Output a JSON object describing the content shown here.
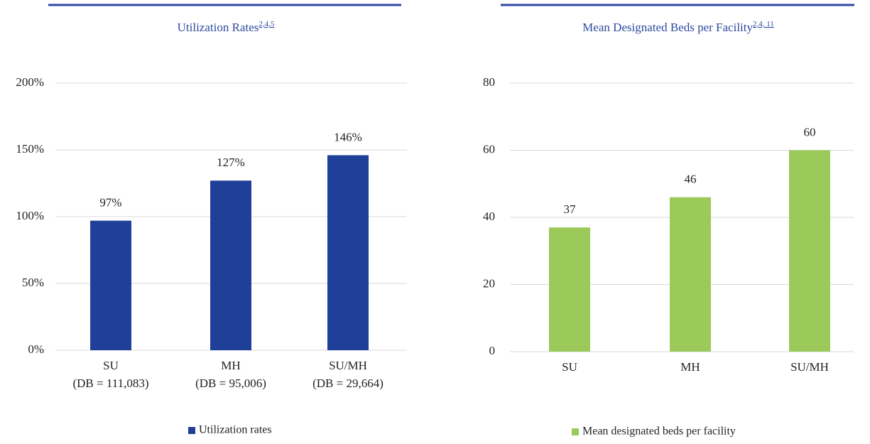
{
  "chart_data": [
    {
      "type": "bar",
      "title": "Utilization Rates",
      "title_refs": "2,4,5",
      "categories": [
        [
          "SU",
          "(DB = 111,083)"
        ],
        [
          "MH",
          "(DB = 95,006)"
        ],
        [
          "SU/MH",
          "(DB = 29,664)"
        ]
      ],
      "series": [
        {
          "name": "Utilization rates",
          "color": "#1f3f99",
          "values": [
            97,
            127,
            146
          ],
          "value_labels": [
            "97%",
            "127%",
            "146%"
          ]
        }
      ],
      "ylim": [
        0,
        200
      ],
      "yticks": [
        {
          "value": 0,
          "label": "0%"
        },
        {
          "value": 50,
          "label": "50%"
        },
        {
          "value": 100,
          "label": "100%"
        },
        {
          "value": 150,
          "label": "150%"
        },
        {
          "value": 200,
          "label": "200%"
        }
      ],
      "grid": true,
      "legend": "bottom"
    },
    {
      "type": "bar",
      "title": "Mean Designated Beds per Facility",
      "title_refs": "2,4, 11",
      "categories": [
        [
          "SU"
        ],
        [
          "MH"
        ],
        [
          "SU/MH"
        ]
      ],
      "series": [
        {
          "name": "Mean designated beds per facility",
          "color": "#9bc95a",
          "values": [
            37,
            46,
            60
          ]
        }
      ],
      "ylim": [
        0,
        80
      ],
      "yticks": [
        0,
        20,
        40,
        60,
        80
      ],
      "grid": true,
      "legend": "bottom"
    }
  ]
}
